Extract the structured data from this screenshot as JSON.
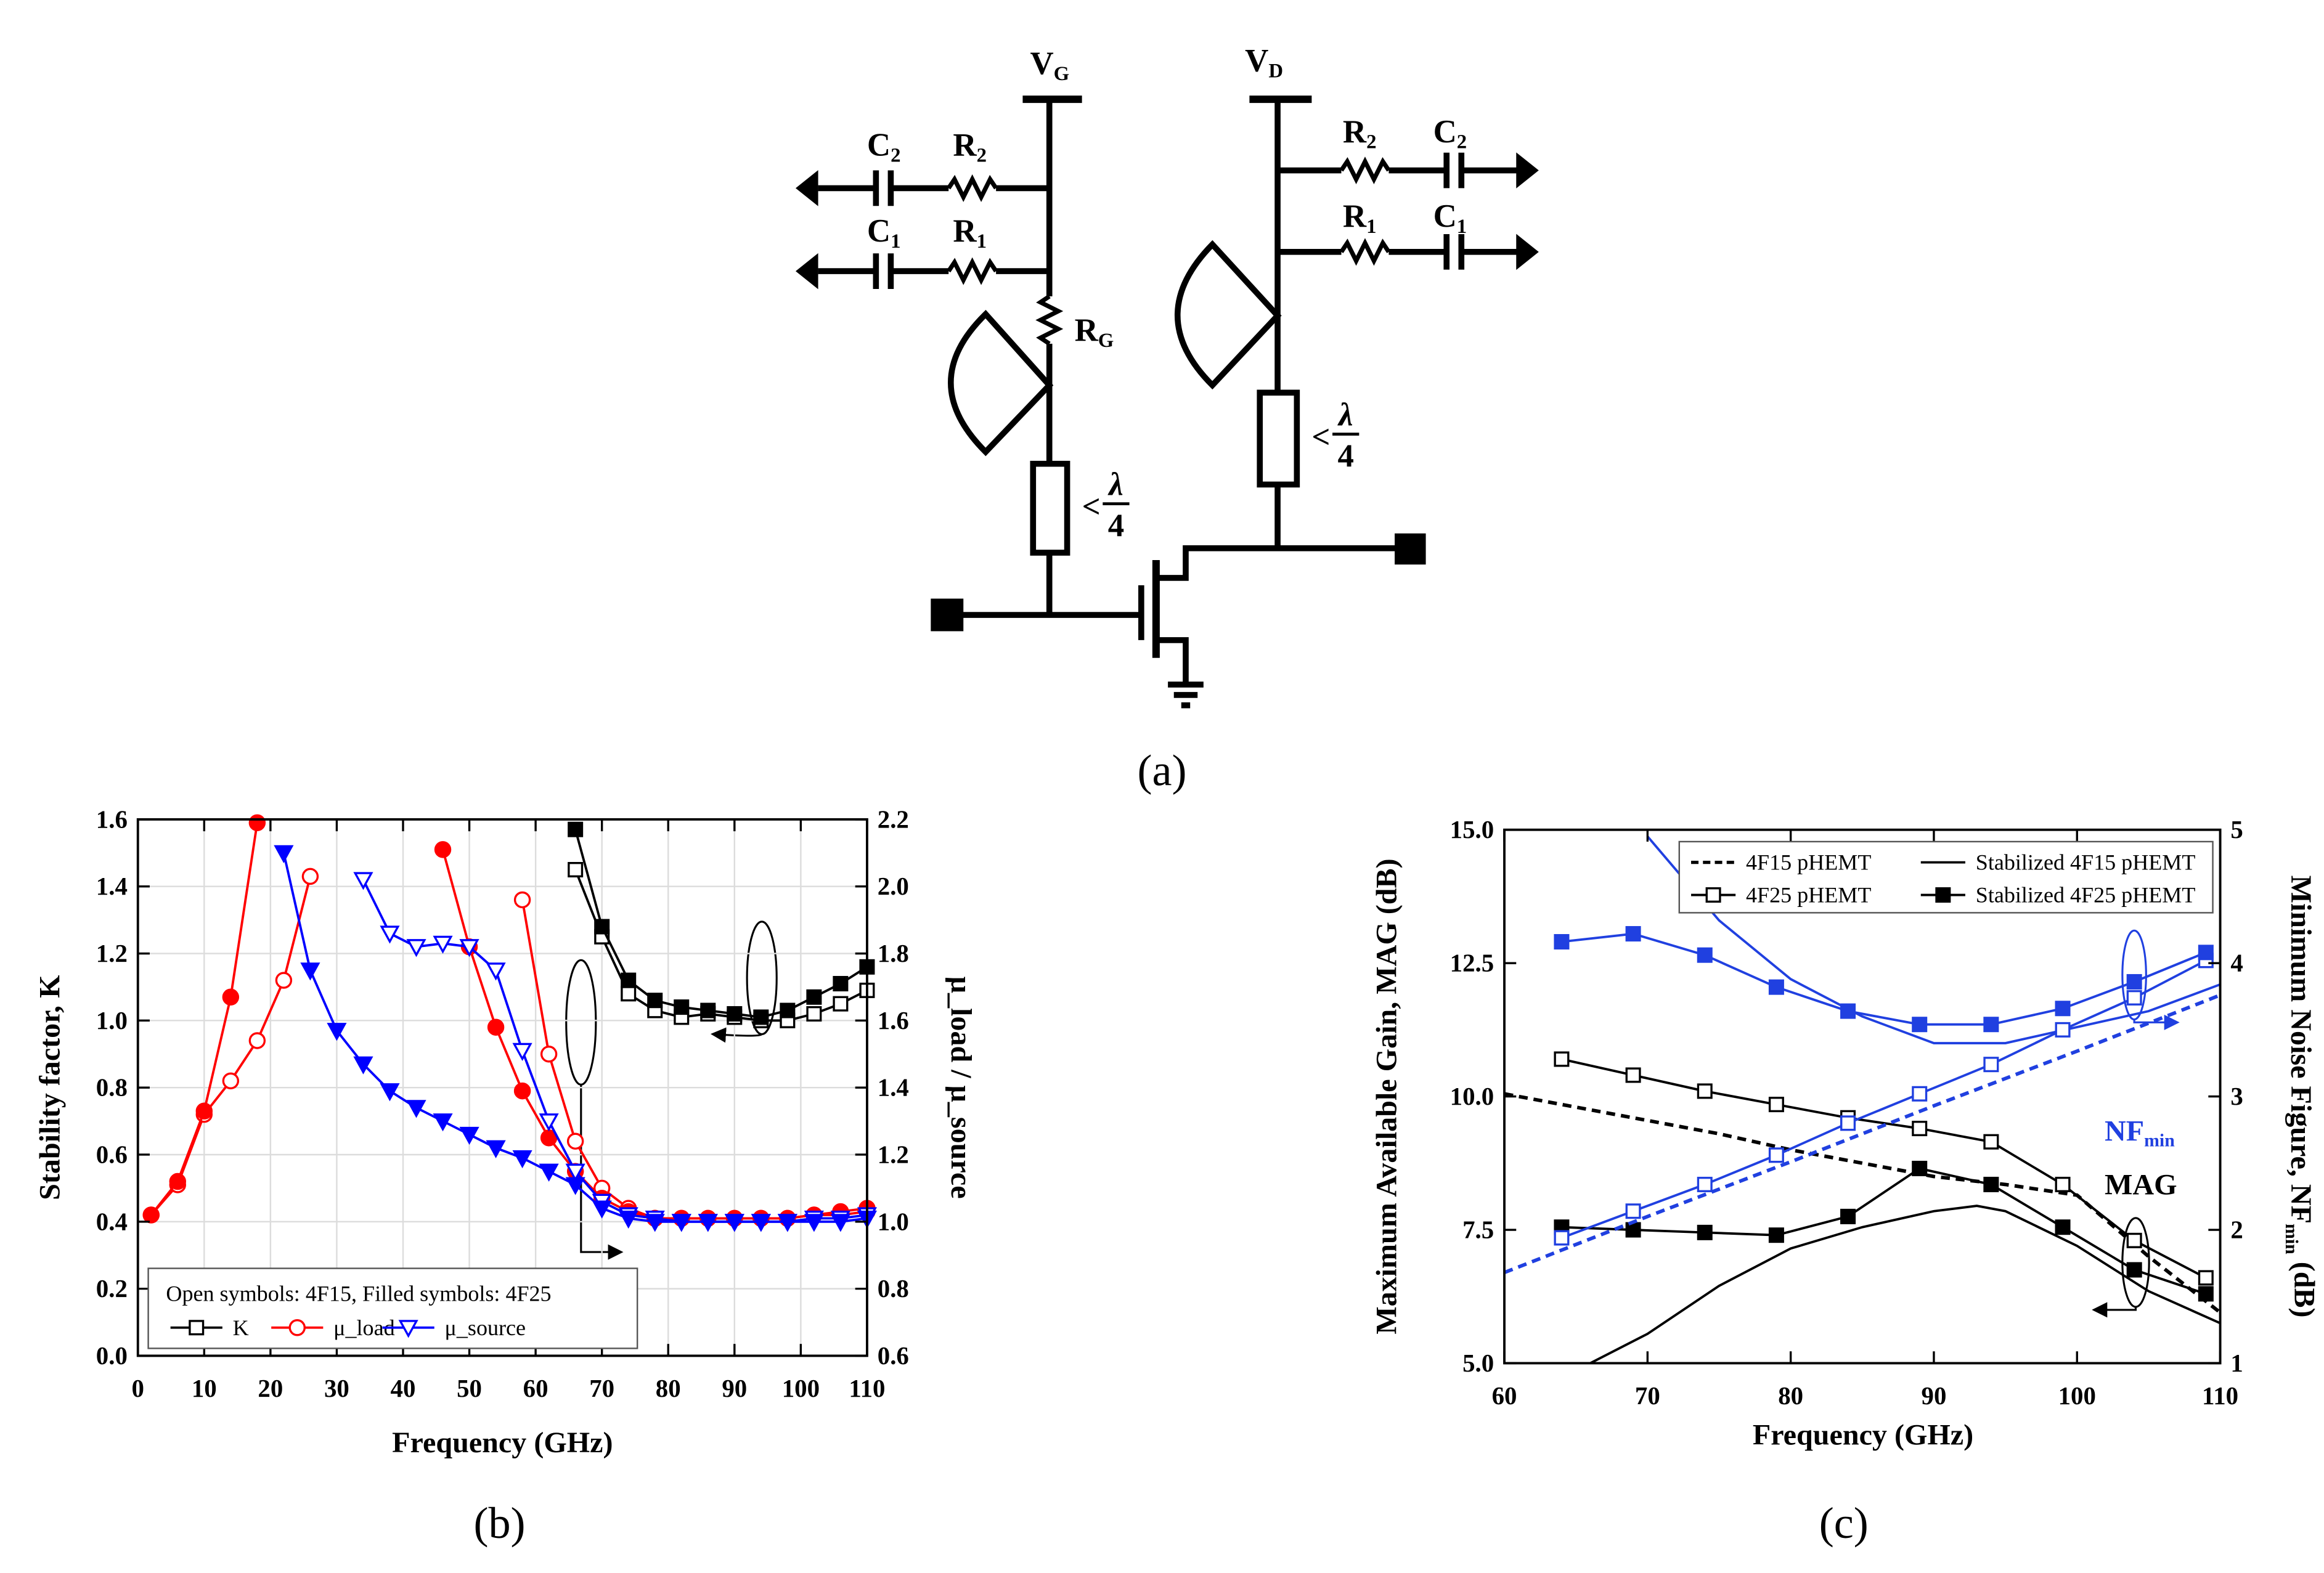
{
  "circuit": {
    "gate_supply": {
      "text": "V",
      "sub": "G"
    },
    "drain_supply": {
      "text": "V",
      "sub": "D"
    },
    "gate_bias": [
      {
        "text": "C",
        "sub": "2"
      },
      {
        "text": "R",
        "sub": "2"
      },
      {
        "text": "C",
        "sub": "1"
      },
      {
        "text": "R",
        "sub": "1"
      },
      {
        "text": "R",
        "sub": "G"
      }
    ],
    "drain_bias": [
      {
        "text": "R",
        "sub": "2"
      },
      {
        "text": "C",
        "sub": "2"
      },
      {
        "text": "R",
        "sub": "1"
      },
      {
        "text": "C",
        "sub": "1"
      }
    ],
    "gate_line": {
      "lt": "<",
      "num": "λ",
      "den": "4"
    },
    "drain_line": {
      "lt": "<",
      "num": "λ",
      "den": "4"
    },
    "panel_label": "(a)"
  },
  "chart_data": [
    {
      "type": "line",
      "panel_label": "(b)",
      "xlabel": "Frequency (GHz)",
      "ylabel": "Stability factor, K",
      "y2label": "μ_load / μ_source",
      "xlim": [
        0,
        110
      ],
      "xticks": [
        0,
        10,
        20,
        30,
        40,
        50,
        60,
        70,
        80,
        90,
        100,
        110
      ],
      "ylim": [
        0,
        1.6
      ],
      "yticks": [
        {
          "value": 0,
          "label": "0.0"
        },
        0.2,
        0.4,
        0.6,
        0.8,
        {
          "value": 1,
          "label": "1.0"
        },
        1.2,
        1.4,
        1.6
      ],
      "y2lim": [
        0.6,
        2.2
      ],
      "y2ticks": [
        0.6,
        0.8,
        {
          "value": 1,
          "label": "1.0"
        },
        1.2,
        1.4,
        1.6,
        1.8,
        {
          "value": 2,
          "label": "2.0"
        },
        2.2
      ],
      "grid": true,
      "legend": "lower left",
      "legend_title": "Open symbols: 4F15, Filled symbols: 4F25",
      "x": [
        2,
        6,
        10,
        14,
        18,
        22,
        26,
        30,
        34,
        38,
        42,
        46,
        50,
        54,
        58,
        62,
        66,
        70,
        74,
        78,
        82,
        86,
        90,
        94,
        98,
        102,
        106,
        110
      ],
      "series": [
        {
          "name": "K",
          "color": "#000000",
          "marker": "square",
          "filled": false,
          "values": [
            null,
            null,
            null,
            null,
            null,
            null,
            null,
            null,
            null,
            null,
            null,
            null,
            null,
            null,
            null,
            null,
            1.45,
            1.25,
            1.08,
            1.03,
            1.01,
            1.02,
            1.01,
            1.0,
            1.0,
            1.02,
            1.05,
            1.09
          ]
        },
        {
          "color": "#000000",
          "marker": "square",
          "filled": true,
          "values": [
            null,
            null,
            null,
            null,
            null,
            null,
            null,
            null,
            null,
            null,
            null,
            null,
            null,
            null,
            null,
            null,
            1.57,
            1.28,
            1.12,
            1.06,
            1.04,
            1.03,
            1.02,
            1.01,
            1.03,
            1.07,
            1.11,
            1.16
          ]
        },
        {
          "name": "μ_load",
          "color": "#ff0000",
          "marker": "circle",
          "filled": false,
          "axis": "y2",
          "values": [
            1.02,
            1.11,
            1.32,
            1.42,
            1.54,
            1.72,
            2.03,
            null,
            null,
            null,
            null,
            null,
            null,
            null,
            1.96,
            1.5,
            1.24,
            1.1,
            1.04,
            1.01,
            1.01,
            1.01,
            1.01,
            1.01,
            1.01,
            1.02,
            1.02,
            1.03
          ]
        },
        {
          "color": "#ff0000",
          "marker": "circle",
          "filled": true,
          "axis": "y2",
          "values": [
            1.02,
            1.12,
            1.33,
            1.67,
            2.19,
            null,
            null,
            null,
            null,
            null,
            null,
            2.11,
            1.82,
            1.58,
            1.39,
            1.25,
            1.15,
            1.07,
            1.03,
            1.01,
            1.01,
            1.01,
            1.01,
            1.01,
            1.01,
            1.02,
            1.03,
            1.04
          ]
        },
        {
          "name": "μ_source",
          "color": "#0000ff",
          "marker": "triangle-down",
          "filled": false,
          "axis": "y2",
          "values": [
            null,
            null,
            null,
            null,
            null,
            null,
            null,
            null,
            2.02,
            1.86,
            1.82,
            1.83,
            1.82,
            1.75,
            1.51,
            1.3,
            1.15,
            1.06,
            1.02,
            1.01,
            1,
            1,
            1,
            1,
            1,
            1.01,
            1.01,
            1.02
          ]
        },
        {
          "color": "#0000ff",
          "marker": "triangle-down",
          "filled": true,
          "axis": "y2",
          "values": [
            null,
            null,
            null,
            null,
            null,
            2.1,
            1.75,
            1.57,
            1.47,
            1.39,
            1.34,
            1.3,
            1.26,
            1.22,
            1.19,
            1.15,
            1.11,
            1.04,
            1.01,
            1,
            1,
            1,
            1,
            1,
            1,
            1,
            1,
            1.01
          ]
        }
      ]
    },
    {
      "type": "line",
      "panel_label": "(c)",
      "xlabel": "Frequency (GHz)",
      "ylabel": "Maximum Available Gain, MAG (dB)",
      "y2label": {
        "text": "Minimum Noise Figure, NF",
        "sub": "min",
        "tail": " (dB)"
      },
      "xlim": [
        60,
        110
      ],
      "xticks": [
        60,
        70,
        80,
        90,
        100,
        110
      ],
      "ylim": [
        5,
        15
      ],
      "yticks": [
        {
          "value": 5,
          "label": "5.0"
        },
        7.5,
        {
          "value": 10,
          "label": "10.0"
        },
        12.5,
        {
          "value": 15,
          "label": "15.0"
        }
      ],
      "y2lim": [
        1,
        5
      ],
      "y2ticks": [
        1,
        2,
        3,
        4,
        5
      ],
      "grid": false,
      "legend": "upper right",
      "annotations": [
        {
          "text": "MAG",
          "color": "#000000"
        },
        {
          "text": "NF",
          "sub": "min",
          "color": "#2040e0"
        }
      ],
      "series": [
        {
          "name": "4F15 pHEMT",
          "color": "#000000",
          "dash": true,
          "x": [
            60,
            65,
            70,
            75,
            80,
            85,
            90,
            95,
            100,
            105,
            110
          ],
          "values": [
            10.05,
            9.8,
            9.55,
            9.3,
            9.0,
            8.75,
            8.5,
            8.35,
            8.15,
            7.0,
            5.95
          ]
        },
        {
          "name": "Stabilized 4F15 pHEMT",
          "color": "#000000",
          "x": [
            66,
            70,
            75,
            80,
            85,
            90,
            93,
            95,
            100,
            105,
            110
          ],
          "values": [
            5.0,
            5.55,
            6.45,
            7.15,
            7.55,
            7.85,
            7.95,
            7.85,
            7.2,
            6.35,
            5.75
          ]
        },
        {
          "name": "4F25 pHEMT",
          "color": "#000000",
          "marker": "square",
          "filled": false,
          "x": [
            64,
            69,
            74,
            79,
            84,
            89,
            94,
            99,
            104,
            109
          ],
          "values": [
            10.7,
            10.4,
            10.1,
            9.85,
            9.6,
            9.4,
            9.15,
            8.35,
            7.3,
            6.6
          ]
        },
        {
          "name": "Stabilized 4F25 pHEMT",
          "color": "#000000",
          "marker": "square",
          "filled": true,
          "x": [
            64,
            69,
            74,
            79,
            84,
            89,
            94,
            99,
            104,
            109
          ],
          "values": [
            7.55,
            7.5,
            7.45,
            7.4,
            7.75,
            8.65,
            8.35,
            7.55,
            6.75,
            6.3
          ]
        },
        {
          "color": "#2040e0",
          "dash": true,
          "axis": "y2",
          "x": [
            60,
            70,
            80,
            90,
            100,
            110
          ],
          "values": [
            1.68,
            2.1,
            2.51,
            2.93,
            3.34,
            3.76
          ]
        },
        {
          "color": "#2040e0",
          "axis": "y2",
          "x": [
            70,
            75,
            80,
            85,
            90,
            95,
            100,
            105,
            110
          ],
          "values": [
            4.95,
            4.32,
            3.88,
            3.6,
            3.4,
            3.4,
            3.52,
            3.64,
            3.84
          ]
        },
        {
          "color": "#2040e0",
          "marker": "square",
          "filled": false,
          "axis": "y2",
          "x": [
            64,
            69,
            74,
            79,
            84,
            89,
            94,
            99,
            104,
            109
          ],
          "values": [
            1.94,
            2.14,
            2.34,
            2.56,
            2.8,
            3.02,
            3.24,
            3.5,
            3.74,
            4.02
          ]
        },
        {
          "color": "#2040e0",
          "marker": "square",
          "filled": true,
          "axis": "y2",
          "x": [
            64,
            69,
            74,
            79,
            84,
            89,
            94,
            99,
            104,
            109
          ],
          "values": [
            4.16,
            4.22,
            4.06,
            3.82,
            3.64,
            3.54,
            3.54,
            3.66,
            3.86,
            4.08
          ]
        }
      ]
    }
  ]
}
